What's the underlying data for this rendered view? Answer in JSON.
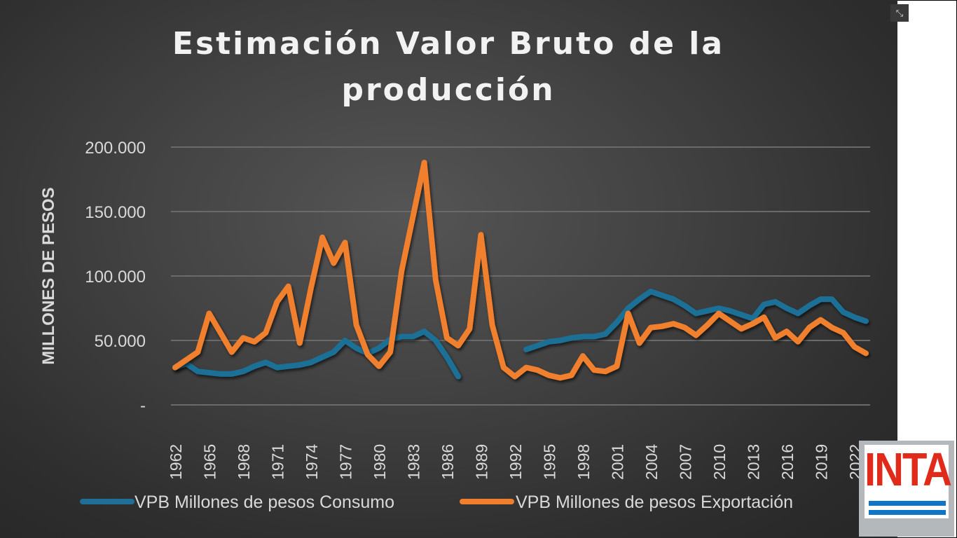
{
  "chart_data": {
    "type": "line",
    "title": "Estimación Valor Bruto de la producción",
    "xlabel": "",
    "ylabel": "MILLONES DE PESOS",
    "ylim": [
      0,
      200000
    ],
    "y_ticks": [
      "-",
      "50.000",
      "100.000",
      "150.000",
      "200.000"
    ],
    "y_tick_values": [
      0,
      50000,
      100000,
      150000,
      200000
    ],
    "x_tick_labels": [
      "1962",
      "1965",
      "1968",
      "1971",
      "1974",
      "1977",
      "1980",
      "1983",
      "1986",
      "1989",
      "1992",
      "1995",
      "1998",
      "2001",
      "2004",
      "2007",
      "2010",
      "2013",
      "2016",
      "2019",
      "2022"
    ],
    "grid": true,
    "legend_position": "bottom",
    "x": [
      1962,
      1963,
      1964,
      1965,
      1966,
      1967,
      1968,
      1969,
      1970,
      1971,
      1972,
      1973,
      1974,
      1975,
      1976,
      1977,
      1978,
      1979,
      1980,
      1981,
      1982,
      1983,
      1984,
      1985,
      1986,
      1987,
      1988,
      1989,
      1990,
      1991,
      1992,
      1993,
      1994,
      1995,
      1996,
      1997,
      1998,
      1999,
      2000,
      2001,
      2002,
      2003,
      2004,
      2005,
      2006,
      2007,
      2008,
      2009,
      2010,
      2011,
      2012,
      2013,
      2014,
      2015,
      2016,
      2017,
      2018,
      2019,
      2020,
      2021,
      2022,
      2023
    ],
    "series": [
      {
        "name": "VPB Millones de pesos Consumo",
        "color": "#1f6f96",
        "values": [
          29000,
          32000,
          26000,
          25000,
          24000,
          24000,
          26000,
          30000,
          33000,
          29000,
          30000,
          31000,
          33000,
          37000,
          41000,
          50000,
          44000,
          40000,
          44000,
          51000,
          53000,
          53000,
          57000,
          50000,
          37000,
          22000,
          null,
          null,
          null,
          null,
          null,
          43000,
          46000,
          49000,
          50000,
          52000,
          53000,
          53000,
          55000,
          64000,
          75000,
          82000,
          88000,
          85000,
          82000,
          77000,
          71000,
          73000,
          75000,
          73000,
          70000,
          67000,
          78000,
          80000,
          75000,
          71000,
          77000,
          82000,
          82000,
          72000,
          68000,
          65000
        ]
      },
      {
        "name": "VPB Millones de pesos Exportación",
        "color": "#f07f2d",
        "values": [
          29000,
          35000,
          41000,
          71000,
          56000,
          41000,
          52000,
          49000,
          56000,
          80000,
          92000,
          48000,
          91000,
          130000,
          110000,
          126000,
          62000,
          39000,
          30000,
          41000,
          104000,
          146000,
          188000,
          97000,
          52000,
          46000,
          59000,
          132000,
          62000,
          29000,
          22000,
          29000,
          27000,
          23000,
          21000,
          23000,
          38000,
          27000,
          26000,
          30000,
          71000,
          48000,
          60000,
          61000,
          63000,
          60000,
          54000,
          62000,
          71000,
          65000,
          59000,
          63000,
          68000,
          52000,
          57000,
          49000,
          60000,
          66000,
          60000,
          56000,
          45000,
          40000
        ]
      }
    ]
  },
  "ui": {
    "collapse_icon": "collapse-icon",
    "logo_text": "INTA"
  }
}
